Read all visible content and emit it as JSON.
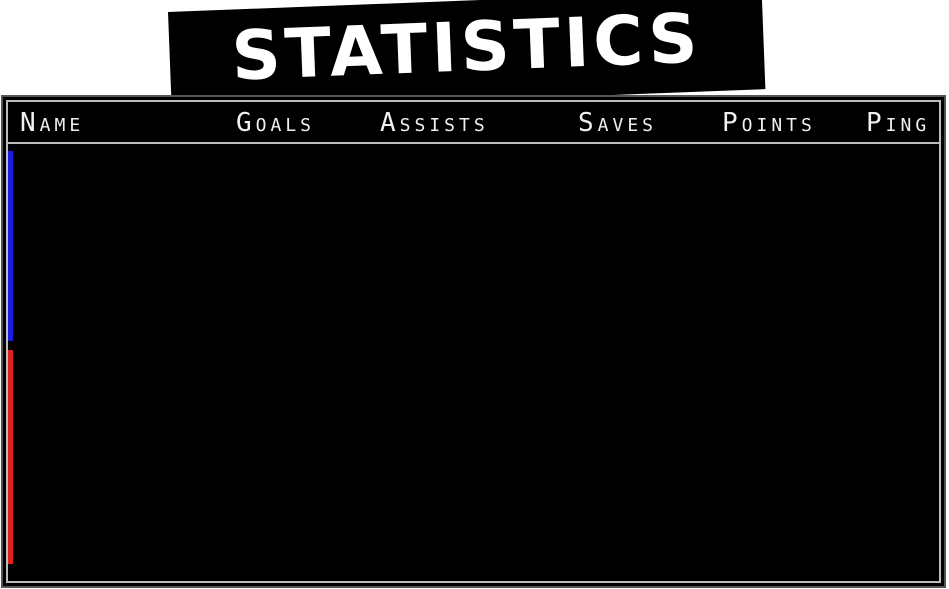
{
  "title": "STATISTICS",
  "columns": {
    "name": "Name",
    "goals": "Goals",
    "assists": "Assists",
    "saves": "Saves",
    "points": "Points",
    "ping": "Ping"
  },
  "teams": {
    "blue_color": "#1a1ae0",
    "red_color": "#e02020"
  },
  "players": []
}
